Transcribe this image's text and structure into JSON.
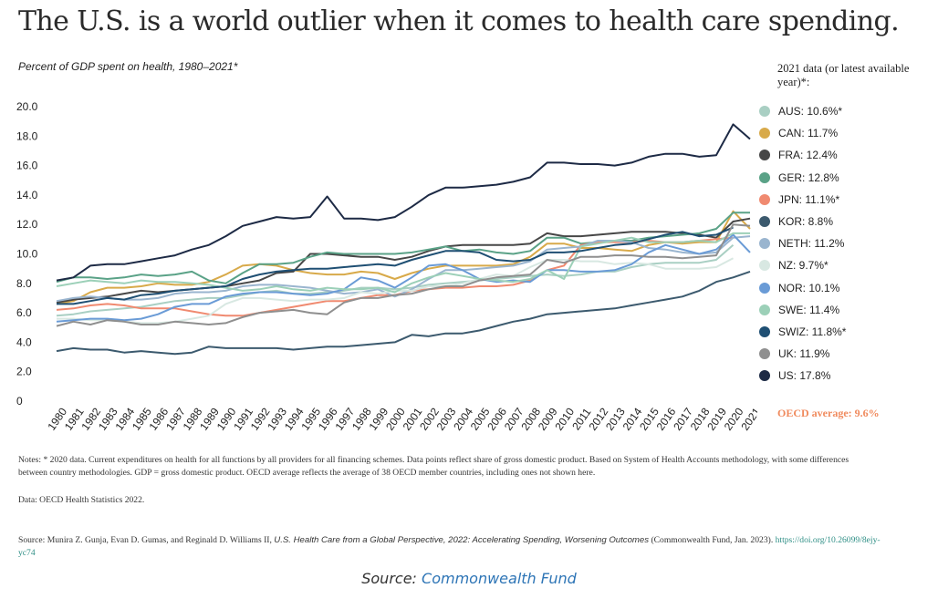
{
  "title": "The U.S. is a world outlier when it comes to health care spending.",
  "subtitle": "Percent of GDP spent on health, 1980–2021*",
  "legend_heading": "2021 data (or latest available year)*:",
  "oecd_note": "OECD average: 9.6%",
  "notes": "Notes: * 2020 data. Current expenditures on health for all functions by all providers for all financing schemes. Data points reflect share of gross domestic product. Based on System of Health Accounts methodology, with some differences between country methodologies. GDP = gross domestic product. OECD average reflects the average of 38 OECD member countries, including ones not shown here.",
  "data_source": "Data: OECD Health Statistics 2022.",
  "source": {
    "prefix": "Source: Munira Z. Gunja, Evan D. Gumas, and Reginald D. Williams II, ",
    "title": "U.S. Health Care from a Global Perspective, 2022: Accelerating Spending, Worsening Outcomes",
    "suffix": " (Commonwealth Fund, Jan. 2023). ",
    "doi": "https://doi.org/10.26099/8ejy-yc74"
  },
  "caption": {
    "prefix": "Source: ",
    "link": "Commonwealth Fund"
  },
  "chart_data": {
    "type": "line",
    "x": [
      1980,
      1981,
      1982,
      1983,
      1984,
      1985,
      1986,
      1987,
      1988,
      1989,
      1990,
      1991,
      1992,
      1993,
      1994,
      1995,
      1996,
      1997,
      1998,
      1999,
      2000,
      2001,
      2002,
      2003,
      2004,
      2005,
      2006,
      2007,
      2008,
      2009,
      2010,
      2011,
      2012,
      2013,
      2014,
      2015,
      2016,
      2017,
      2018,
      2019,
      2020,
      2021
    ],
    "y_ticks": [
      "0",
      "2.0",
      "4.0",
      "6.0",
      "8.0",
      "10.0",
      "12.0",
      "14.0",
      "16.0",
      "18.0",
      "20.0"
    ],
    "ylim": [
      0,
      20
    ],
    "grid": false,
    "legend": "right",
    "series": [
      {
        "name": "AUS: 10.6%*",
        "color": "#a9cfc3",
        "values": [
          5.8,
          5.9,
          6.1,
          6.2,
          6.3,
          6.4,
          6.6,
          6.8,
          6.9,
          7.0,
          7.0,
          7.2,
          7.4,
          7.5,
          7.3,
          7.3,
          7.4,
          7.5,
          7.7,
          7.7,
          7.6,
          7.7,
          7.9,
          8.0,
          8.1,
          8.2,
          8.3,
          8.4,
          8.5,
          8.6,
          8.5,
          8.6,
          8.8,
          8.8,
          9.1,
          9.3,
          9.4,
          9.4,
          9.4,
          9.6,
          10.6,
          null
        ]
      },
      {
        "name": "CAN: 11.7%",
        "color": "#d8aa4a",
        "values": [
          6.6,
          6.8,
          7.4,
          7.7,
          7.7,
          7.8,
          8.0,
          7.9,
          7.9,
          8.1,
          8.6,
          9.2,
          9.3,
          9.2,
          8.9,
          8.7,
          8.6,
          8.6,
          8.8,
          8.7,
          8.3,
          8.7,
          9.0,
          9.2,
          9.2,
          9.2,
          9.2,
          9.3,
          9.8,
          10.7,
          10.7,
          10.4,
          10.4,
          10.3,
          10.2,
          10.6,
          10.8,
          10.7,
          10.8,
          10.8,
          12.9,
          11.7
        ]
      },
      {
        "name": "FRA: 12.4%",
        "color": "#474747",
        "values": [
          6.7,
          6.9,
          7.0,
          7.1,
          7.3,
          7.5,
          7.4,
          7.5,
          7.6,
          7.7,
          7.8,
          8.0,
          8.2,
          8.7,
          8.8,
          10.0,
          10.0,
          9.9,
          9.8,
          9.8,
          9.6,
          9.8,
          10.2,
          10.5,
          10.6,
          10.6,
          10.6,
          10.6,
          10.7,
          11.4,
          11.2,
          11.2,
          11.3,
          11.4,
          11.5,
          11.5,
          11.5,
          11.4,
          11.3,
          11.1,
          12.2,
          12.4
        ]
      },
      {
        "name": "GER: 12.8%",
        "color": "#5aa287",
        "values": [
          8.1,
          8.4,
          8.4,
          8.3,
          8.4,
          8.6,
          8.5,
          8.6,
          8.8,
          8.2,
          8.0,
          8.7,
          9.3,
          9.3,
          9.4,
          9.8,
          10.1,
          10.0,
          10.0,
          10.0,
          10.0,
          10.1,
          10.3,
          10.5,
          10.2,
          10.3,
          10.1,
          10.0,
          10.2,
          11.1,
          11.1,
          10.7,
          10.8,
          10.9,
          10.9,
          11.1,
          11.2,
          11.3,
          11.4,
          11.7,
          12.8,
          12.8
        ]
      },
      {
        "name": "JPN: 11.1%*",
        "color": "#f08a70",
        "values": [
          6.2,
          6.3,
          6.5,
          6.6,
          6.5,
          6.3,
          6.3,
          6.3,
          6.1,
          5.9,
          5.8,
          5.8,
          6.0,
          6.2,
          6.4,
          6.6,
          6.8,
          6.8,
          7.0,
          7.2,
          7.2,
          7.5,
          7.6,
          7.7,
          7.7,
          7.8,
          7.8,
          7.9,
          8.2,
          8.9,
          9.2,
          10.6,
          10.8,
          10.8,
          10.8,
          10.9,
          10.8,
          10.8,
          10.9,
          11.0,
          11.1,
          null
        ]
      },
      {
        "name": "KOR: 8.8%",
        "color": "#3c5a6e",
        "values": [
          3.4,
          3.6,
          3.5,
          3.5,
          3.3,
          3.4,
          3.3,
          3.2,
          3.3,
          3.7,
          3.6,
          3.6,
          3.6,
          3.6,
          3.5,
          3.6,
          3.7,
          3.7,
          3.8,
          3.9,
          4.0,
          4.5,
          4.4,
          4.6,
          4.6,
          4.8,
          5.1,
          5.4,
          5.6,
          5.9,
          6.0,
          6.1,
          6.2,
          6.3,
          6.5,
          6.7,
          6.9,
          7.1,
          7.5,
          8.1,
          8.4,
          8.8
        ]
      },
      {
        "name": "NETH: 11.2%",
        "color": "#9ab5cf",
        "values": [
          6.8,
          7.0,
          7.1,
          7.0,
          6.9,
          6.9,
          7.0,
          7.3,
          7.4,
          7.4,
          7.5,
          7.8,
          7.9,
          7.9,
          7.8,
          7.7,
          7.5,
          7.3,
          7.4,
          7.6,
          7.1,
          7.6,
          8.3,
          8.9,
          8.9,
          9.0,
          9.1,
          9.2,
          9.5,
          10.3,
          10.4,
          10.5,
          10.9,
          10.9,
          10.8,
          10.4,
          10.3,
          10.1,
          10.0,
          10.1,
          11.1,
          11.2
        ]
      },
      {
        "name": "NZ: 9.7%*",
        "color": "#d8e8e2",
        "values": [
          5.6,
          5.6,
          5.5,
          5.5,
          5.4,
          5.3,
          5.3,
          5.4,
          5.6,
          5.8,
          6.6,
          7.0,
          7.0,
          6.9,
          6.8,
          6.9,
          6.9,
          7.0,
          7.4,
          7.3,
          7.5,
          7.5,
          7.8,
          7.8,
          8.0,
          8.3,
          8.6,
          8.5,
          9.1,
          9.6,
          9.6,
          9.5,
          9.5,
          9.3,
          9.4,
          9.3,
          9.0,
          9.0,
          9.0,
          9.1,
          9.7,
          null
        ]
      },
      {
        "name": "NOR: 10.1%",
        "color": "#6a9bd6",
        "values": [
          5.4,
          5.5,
          5.6,
          5.6,
          5.5,
          5.6,
          5.9,
          6.4,
          6.6,
          6.6,
          7.1,
          7.3,
          7.4,
          7.4,
          7.3,
          7.2,
          7.3,
          7.6,
          8.4,
          8.2,
          7.7,
          8.4,
          9.2,
          9.3,
          8.9,
          8.3,
          8.1,
          8.2,
          8.1,
          8.9,
          8.9,
          8.8,
          8.8,
          8.9,
          9.3,
          10.1,
          10.6,
          10.3,
          10.0,
          10.3,
          11.3,
          10.1
        ]
      },
      {
        "name": "SWE: 11.4%",
        "color": "#9cd0b8",
        "values": [
          7.8,
          8.0,
          8.2,
          8.1,
          8.0,
          8.2,
          8.1,
          8.1,
          8.0,
          7.9,
          7.7,
          7.5,
          7.6,
          7.8,
          7.6,
          7.5,
          7.7,
          7.6,
          7.6,
          7.7,
          7.4,
          8.0,
          8.4,
          8.7,
          8.5,
          8.3,
          8.2,
          8.1,
          8.3,
          8.9,
          8.3,
          10.5,
          10.7,
          10.9,
          11.1,
          10.8,
          10.8,
          10.8,
          10.9,
          10.8,
          11.4,
          11.4
        ]
      },
      {
        "name": "SWIZ: 11.8%*",
        "color": "#1f4f73",
        "values": [
          6.6,
          6.6,
          6.8,
          7.0,
          6.9,
          7.2,
          7.3,
          7.5,
          7.6,
          7.7,
          7.8,
          8.3,
          8.6,
          8.8,
          8.9,
          9.0,
          9.0,
          9.1,
          9.2,
          9.3,
          9.2,
          9.6,
          9.9,
          10.2,
          10.2,
          10.1,
          9.6,
          9.5,
          9.6,
          10.1,
          10.1,
          10.2,
          10.4,
          10.6,
          10.7,
          11.0,
          11.3,
          11.5,
          11.2,
          11.3,
          11.8,
          null
        ]
      },
      {
        "name": "UK: 11.9%",
        "color": "#8f8f8f",
        "values": [
          5.1,
          5.4,
          5.2,
          5.5,
          5.4,
          5.2,
          5.2,
          5.4,
          5.3,
          5.2,
          5.3,
          5.7,
          6.0,
          6.1,
          6.2,
          6.0,
          5.9,
          6.7,
          7.0,
          7.0,
          7.2,
          7.3,
          7.6,
          7.8,
          7.8,
          8.2,
          8.4,
          8.5,
          8.6,
          9.6,
          9.4,
          9.8,
          9.8,
          9.9,
          9.9,
          9.8,
          9.8,
          9.7,
          9.8,
          9.9,
          12.0,
          11.9
        ]
      },
      {
        "name": "US: 17.8%",
        "color": "#1d2a45",
        "values": [
          8.2,
          8.4,
          9.2,
          9.3,
          9.3,
          9.5,
          9.7,
          9.9,
          10.3,
          10.6,
          11.2,
          11.9,
          12.2,
          12.5,
          12.4,
          12.5,
          13.9,
          12.4,
          12.4,
          12.3,
          12.5,
          13.2,
          14.0,
          14.5,
          14.5,
          14.6,
          14.7,
          14.9,
          15.2,
          16.2,
          16.2,
          16.1,
          16.1,
          16.0,
          16.2,
          16.6,
          16.8,
          16.8,
          16.6,
          16.7,
          18.8,
          17.8
        ]
      }
    ]
  }
}
